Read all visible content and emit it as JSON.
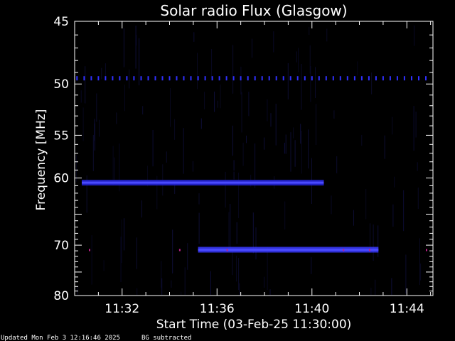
{
  "chart_data": {
    "type": "heatmap",
    "title": "Solar radio Flux (Glasgow)",
    "xlabel": "Start Time (03-Feb-25 11:30:00)",
    "ylabel": "Frequency [MHz]",
    "x_unit": "minutes after 11:30:00",
    "xlim": [
      0,
      15.1
    ],
    "ylim_top_to_bottom": [
      45,
      80
    ],
    "y_scale": "reciprocal",
    "x_ticks": [
      {
        "label": "11:32",
        "value": 2
      },
      {
        "label": "11:36",
        "value": 6
      },
      {
        "label": "11:40",
        "value": 10
      },
      {
        "label": "11:44",
        "value": 14
      }
    ],
    "y_ticks": [
      {
        "label": "45",
        "value": 45
      },
      {
        "label": "50",
        "value": 50
      },
      {
        "label": "55",
        "value": 55
      },
      {
        "label": "60",
        "value": 60
      },
      {
        "label": "70",
        "value": 70
      },
      {
        "label": "80",
        "value": 80
      }
    ],
    "features": [
      {
        "kind": "periodic-dots",
        "freq_mhz": 49.5,
        "x_start": 0.1,
        "x_end": 15.0,
        "step": 0.3,
        "color": "#3030ff"
      },
      {
        "kind": "band",
        "freq_mhz": 60.6,
        "x_start": 0.3,
        "x_end": 10.5,
        "color": "#2525e0"
      },
      {
        "kind": "band",
        "freq_mhz": 70.8,
        "x_start": 5.2,
        "x_end": 12.8,
        "color": "#3a3aff"
      }
    ],
    "colors": {
      "background": "#000000",
      "foreground": "#ffffff",
      "signal": "#2b2bff",
      "hot_pixels": "#c0208a"
    }
  },
  "footer": {
    "updated": "Updated Mon Feb  3 12:16:46 2025",
    "note": "BG subtracted"
  }
}
